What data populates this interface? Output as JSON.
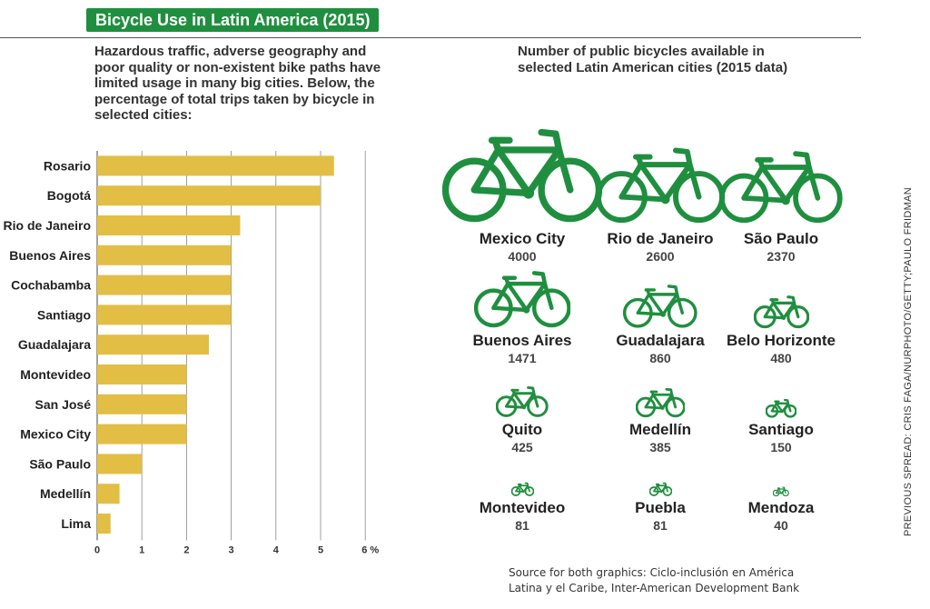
{
  "title": "Bicycle Use in Latin America (2015)",
  "left_description": "Hazardous traffic, adverse geography and poor quality or non-existent bike paths have limited usage in many big cities. Below, the percentage of total trips taken by bicycle in selected cities:",
  "right_description": "Number of public bicycles available in selected Latin American cities (2015 data)",
  "source": "Source for both graphics: Ciclo-inclusión en América Latina y el Caribe, Inter-American Development Bank",
  "credit": "PREVIOUS SPREAD: CRIS FAGA/NURPHOTO/GETTY;PAULO FRIDMAN",
  "colors": {
    "bar": "#e2be45",
    "bike": "#1f8f3f",
    "title_bg": "#1f8f3f"
  },
  "chart_data": [
    {
      "type": "bar",
      "orientation": "horizontal",
      "categories": [
        "Rosario",
        "Bogotá",
        "Rio de Janeiro",
        "Buenos Aires",
        "Cochabamba",
        "Santiago",
        "Guadalajara",
        "Montevideo",
        "San José",
        "Mexico City",
        "São Paulo",
        "Medellín",
        "Lima"
      ],
      "values": [
        5.3,
        5.0,
        3.2,
        3.0,
        3.0,
        3.0,
        2.5,
        2.0,
        2.0,
        2.0,
        1.0,
        0.5,
        0.3
      ],
      "xlim": [
        0,
        6
      ],
      "x_ticks": [
        "0",
        "1",
        "2",
        "3",
        "4",
        "5",
        "6 %"
      ],
      "grid": true
    },
    {
      "type": "pictogram",
      "items": [
        {
          "city": "Mexico City",
          "value": 4000
        },
        {
          "city": "Rio de Janeiro",
          "value": 2600
        },
        {
          "city": "São Paulo",
          "value": 2370
        },
        {
          "city": "Buenos Aires",
          "value": 1471
        },
        {
          "city": "Guadalajara",
          "value": 860
        },
        {
          "city": "Belo Horizonte",
          "value": 480
        },
        {
          "city": "Quito",
          "value": 425
        },
        {
          "city": "Medellín",
          "value": 385
        },
        {
          "city": "Santiago",
          "value": 150
        },
        {
          "city": "Montevideo",
          "value": 81
        },
        {
          "city": "Puebla",
          "value": 81
        },
        {
          "city": "Mendoza",
          "value": 40
        }
      ]
    }
  ]
}
